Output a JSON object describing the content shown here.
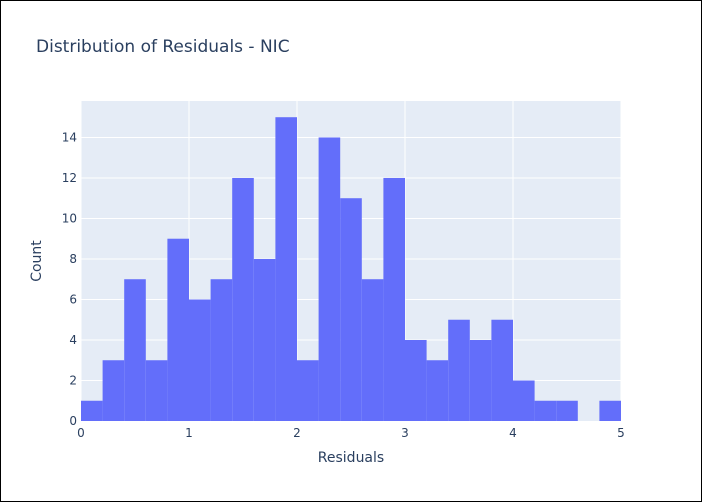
{
  "chart_data": {
    "type": "bar",
    "title": "Distribution of Residuals - NIC",
    "xlabel": "Residuals",
    "ylabel": "Count",
    "bin_width": 0.2,
    "bins": [
      {
        "start": 0.0,
        "end": 0.2,
        "count": 1
      },
      {
        "start": 0.2,
        "end": 0.4,
        "count": 3
      },
      {
        "start": 0.4,
        "end": 0.6,
        "count": 7
      },
      {
        "start": 0.6,
        "end": 0.8,
        "count": 3
      },
      {
        "start": 0.8,
        "end": 1.0,
        "count": 9
      },
      {
        "start": 1.0,
        "end": 1.2,
        "count": 6
      },
      {
        "start": 1.2,
        "end": 1.4,
        "count": 7
      },
      {
        "start": 1.4,
        "end": 1.6,
        "count": 12
      },
      {
        "start": 1.6,
        "end": 1.8,
        "count": 8
      },
      {
        "start": 1.8,
        "end": 2.0,
        "count": 15
      },
      {
        "start": 2.0,
        "end": 2.2,
        "count": 3
      },
      {
        "start": 2.2,
        "end": 2.4,
        "count": 14
      },
      {
        "start": 2.4,
        "end": 2.6,
        "count": 11
      },
      {
        "start": 2.6,
        "end": 2.8,
        "count": 7
      },
      {
        "start": 2.8,
        "end": 3.0,
        "count": 12
      },
      {
        "start": 3.0,
        "end": 3.2,
        "count": 4
      },
      {
        "start": 3.2,
        "end": 3.4,
        "count": 3
      },
      {
        "start": 3.4,
        "end": 3.6,
        "count": 5
      },
      {
        "start": 3.6,
        "end": 3.8,
        "count": 4
      },
      {
        "start": 3.8,
        "end": 4.0,
        "count": 5
      },
      {
        "start": 4.0,
        "end": 4.2,
        "count": 2
      },
      {
        "start": 4.2,
        "end": 4.4,
        "count": 1
      },
      {
        "start": 4.4,
        "end": 4.6,
        "count": 1
      },
      {
        "start": 4.6,
        "end": 4.8,
        "count": 0
      },
      {
        "start": 4.8,
        "end": 5.0,
        "count": 1
      }
    ],
    "xlim": [
      0,
      5
    ],
    "ylim": [
      0,
      15.8
    ],
    "xticks": [
      0,
      1,
      2,
      3,
      4,
      5
    ],
    "yticks": [
      0,
      2,
      4,
      6,
      8,
      10,
      12,
      14
    ],
    "grid": true,
    "legend": "none",
    "colors": {
      "bar": "#636efa",
      "plot_background": "#e5ecf6",
      "grid": "#ffffff",
      "text": "#2a3f5f"
    }
  }
}
